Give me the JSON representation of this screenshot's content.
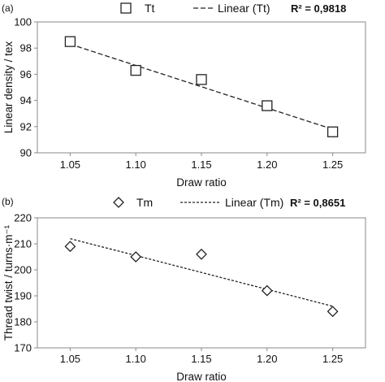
{
  "chart_data": [
    {
      "panel_label": "(a)",
      "type": "scatter",
      "x": [
        1.05,
        1.1,
        1.15,
        1.2,
        1.25
      ],
      "y": [
        98.5,
        96.3,
        95.6,
        93.6,
        91.6
      ],
      "xlabel": "Draw ratio",
      "ylabel": "Linear density / tex",
      "xlim": [
        1.025,
        1.275
      ],
      "ylim": [
        90,
        100
      ],
      "x_ticks": [
        "1.05",
        "1.10",
        "1.15",
        "1.20",
        "1.25"
      ],
      "y_ticks": [
        "90",
        "92",
        "94",
        "96",
        "98",
        "100"
      ],
      "series": [
        {
          "name": "Tt",
          "marker": "square"
        }
      ],
      "trendline": {
        "name": "Linear (Tt)",
        "style": "dashed",
        "y_start": 98.3,
        "y_end": 91.8
      },
      "annotation": "R² = 0,9818",
      "grid": false,
      "legend": "top"
    },
    {
      "panel_label": "(b)",
      "type": "scatter",
      "x": [
        1.05,
        1.1,
        1.15,
        1.2,
        1.25
      ],
      "y": [
        209,
        205,
        206,
        192,
        184
      ],
      "xlabel": "Draw ratio",
      "ylabel": "Thread twist  / turns·m⁻¹",
      "xlim": [
        1.025,
        1.275
      ],
      "ylim": [
        170,
        220
      ],
      "x_ticks": [
        "1.05",
        "1.10",
        "1.15",
        "1.20",
        "1.25"
      ],
      "y_ticks": [
        "170",
        "180",
        "190",
        "200",
        "210",
        "220"
      ],
      "series": [
        {
          "name": "Tm",
          "marker": "diamond"
        }
      ],
      "trendline": {
        "name": "Linear (Tm)",
        "style": "dotted",
        "y_start": 212,
        "y_end": 186
      },
      "annotation": "R² = 0,8651",
      "grid": false,
      "legend": "top"
    }
  ]
}
